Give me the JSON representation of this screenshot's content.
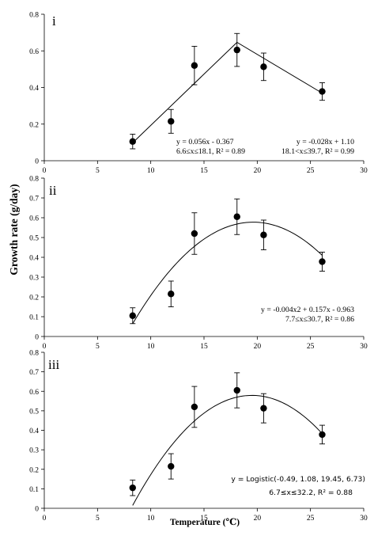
{
  "figure": {
    "ylabel": "Growth rate (g/day)",
    "xlabel": "Temperature (℃)"
  },
  "chart_data": [
    {
      "type": "scatter",
      "panel_label": "i",
      "xlim": [
        0,
        30
      ],
      "ylim": [
        0,
        0.8
      ],
      "x_ticks": [
        "0",
        "5",
        "10",
        "15",
        "20",
        "25",
        "30"
      ],
      "y_ticks": [
        "0",
        "0.2",
        "0.4",
        "0.6",
        "0.8"
      ],
      "grid": false,
      "points": [
        {
          "x": 8.3,
          "y": 0.105,
          "err": 0.04
        },
        {
          "x": 11.9,
          "y": 0.215,
          "err": 0.065
        },
        {
          "x": 14.1,
          "y": 0.52,
          "err": 0.105
        },
        {
          "x": 18.1,
          "y": 0.605,
          "err": 0.09
        },
        {
          "x": 20.6,
          "y": 0.513,
          "err": 0.075
        },
        {
          "x": 26.1,
          "y": 0.378,
          "err": 0.048
        }
      ],
      "fit": {
        "kind": "piecewise",
        "break": 18.1,
        "a1": 0.056,
        "b1": -0.367,
        "a2": -0.028,
        "b2": 1.1,
        "xmin": 8.3,
        "xmax": 26.1
      },
      "equations": [
        [
          "y = 0.056x - 0.367",
          "6.6≤x≤18.1, R² = 0.89"
        ],
        [
          "y = -0.028x + 1.10",
          "18.1<x≤39.7, R² = 0.99"
        ]
      ]
    },
    {
      "type": "scatter",
      "panel_label": "ii",
      "xlim": [
        0,
        30
      ],
      "ylim": [
        0,
        0.8
      ],
      "x_ticks": [
        "0",
        "5",
        "10",
        "15",
        "20",
        "25",
        "30"
      ],
      "y_ticks": [
        "0",
        "0.1",
        "0.2",
        "0.3",
        "0.4",
        "0.5",
        "0.6",
        "0.7",
        "0.8"
      ],
      "grid": false,
      "points": [
        {
          "x": 8.3,
          "y": 0.105,
          "err": 0.04
        },
        {
          "x": 11.9,
          "y": 0.215,
          "err": 0.065
        },
        {
          "x": 14.1,
          "y": 0.52,
          "err": 0.105
        },
        {
          "x": 18.1,
          "y": 0.605,
          "err": 0.09
        },
        {
          "x": 20.6,
          "y": 0.513,
          "err": 0.075
        },
        {
          "x": 26.1,
          "y": 0.378,
          "err": 0.048
        }
      ],
      "fit": {
        "kind": "quadratic",
        "a": -0.004,
        "b": 0.157,
        "c": -0.963,
        "xmin": 8.3,
        "xmax": 26.1
      },
      "equations": [
        [
          "y = -0.004x2 + 0.157x - 0.963",
          "7.7≤x≤30.7, R² = 0.86"
        ]
      ]
    },
    {
      "type": "scatter",
      "panel_label": "iii",
      "xlim": [
        0,
        30
      ],
      "ylim": [
        0,
        0.8
      ],
      "x_ticks": [
        "0",
        "5",
        "10",
        "15",
        "20",
        "25",
        "30"
      ],
      "y_ticks": [
        "0",
        "0.1",
        "0.2",
        "0.3",
        "0.4",
        "0.5",
        "0.6",
        "0.7",
        "0.8"
      ],
      "grid": false,
      "points": [
        {
          "x": 8.3,
          "y": 0.105,
          "err": 0.04
        },
        {
          "x": 11.9,
          "y": 0.215,
          "err": 0.065
        },
        {
          "x": 14.1,
          "y": 0.52,
          "err": 0.105
        },
        {
          "x": 18.1,
          "y": 0.605,
          "err": 0.09
        },
        {
          "x": 20.6,
          "y": 0.513,
          "err": 0.075
        },
        {
          "x": 26.1,
          "y": 0.378,
          "err": 0.048
        }
      ],
      "fit": {
        "kind": "quadratic",
        "a": -0.0045,
        "b": 0.1755,
        "c": -1.132,
        "xmin": 8.3,
        "xmax": 26.1
      },
      "equations": [
        [
          "y = Logistic(-0.49, 1.08, 19.45, 6.73)",
          "6.7≤x≤32.2,  R² = 0.88"
        ]
      ]
    }
  ]
}
